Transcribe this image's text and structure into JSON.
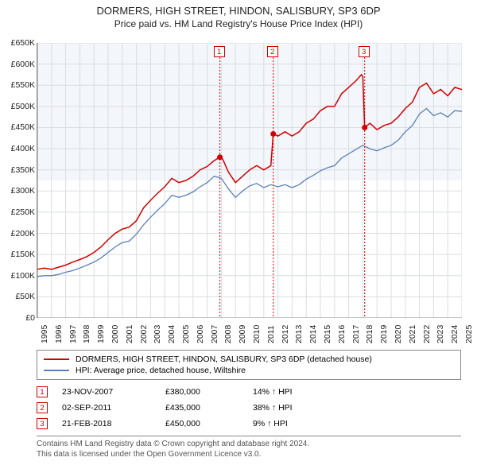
{
  "title_line1": "DORMERS, HIGH STREET, HINDON, SALISBURY, SP3 6DP",
  "title_line2": "Price paid vs. HM Land Registry's House Price Index (HPI)",
  "chart": {
    "type": "line",
    "x_start_year": 1995,
    "x_end_year": 2025,
    "xtick_step": 1,
    "ylim": [
      0,
      650000
    ],
    "ytick_step": 50000,
    "ytick_labels": [
      "£0",
      "£50K",
      "£100K",
      "£150K",
      "£200K",
      "£250K",
      "£300K",
      "£350K",
      "£400K",
      "£450K",
      "£500K",
      "£550K",
      "£600K",
      "£650K"
    ],
    "xtick_labels": [
      "1995",
      "1996",
      "1997",
      "1998",
      "1999",
      "2000",
      "2001",
      "2002",
      "2003",
      "2004",
      "2005",
      "2006",
      "2007",
      "2008",
      "2009",
      "2010",
      "2011",
      "2012",
      "2013",
      "2014",
      "2015",
      "2016",
      "2017",
      "2018",
      "2019",
      "2020",
      "2021",
      "2022",
      "2023",
      "2024",
      "2025"
    ],
    "background_color": "#ffffff",
    "plot_highlight_color": "#e9eef5",
    "grid_color": "#dadde2",
    "axis_color": "#888888",
    "series": [
      {
        "name": "property",
        "label": "DORMERS, HIGH STREET, HINDON, SALISBURY, SP3 6DP (detached house)",
        "color": "#d00000",
        "line_width": 1.5,
        "data": [
          [
            1995.0,
            115000
          ],
          [
            1995.5,
            118000
          ],
          [
            1996.0,
            115000
          ],
          [
            1996.5,
            120000
          ],
          [
            1997.0,
            125000
          ],
          [
            1997.5,
            132000
          ],
          [
            1998.0,
            138000
          ],
          [
            1998.5,
            145000
          ],
          [
            1999.0,
            155000
          ],
          [
            1999.5,
            168000
          ],
          [
            2000.0,
            185000
          ],
          [
            2000.5,
            200000
          ],
          [
            2001.0,
            210000
          ],
          [
            2001.5,
            215000
          ],
          [
            2002.0,
            230000
          ],
          [
            2002.5,
            260000
          ],
          [
            2003.0,
            278000
          ],
          [
            2003.5,
            295000
          ],
          [
            2004.0,
            310000
          ],
          [
            2004.5,
            330000
          ],
          [
            2005.0,
            320000
          ],
          [
            2005.5,
            325000
          ],
          [
            2006.0,
            335000
          ],
          [
            2006.5,
            350000
          ],
          [
            2007.0,
            358000
          ],
          [
            2007.5,
            372000
          ],
          [
            2007.9,
            380000
          ],
          [
            2008.1,
            375000
          ],
          [
            2008.5,
            345000
          ],
          [
            2009.0,
            320000
          ],
          [
            2009.5,
            335000
          ],
          [
            2010.0,
            350000
          ],
          [
            2010.5,
            360000
          ],
          [
            2011.0,
            350000
          ],
          [
            2011.5,
            360000
          ],
          [
            2011.67,
            435000
          ],
          [
            2012.0,
            430000
          ],
          [
            2012.5,
            440000
          ],
          [
            2013.0,
            430000
          ],
          [
            2013.5,
            440000
          ],
          [
            2014.0,
            460000
          ],
          [
            2014.5,
            470000
          ],
          [
            2015.0,
            490000
          ],
          [
            2015.5,
            500000
          ],
          [
            2016.0,
            500000
          ],
          [
            2016.5,
            530000
          ],
          [
            2017.0,
            545000
          ],
          [
            2017.5,
            560000
          ],
          [
            2017.9,
            575000
          ],
          [
            2018.0,
            570000
          ],
          [
            2018.13,
            450000
          ],
          [
            2018.5,
            460000
          ],
          [
            2019.0,
            445000
          ],
          [
            2019.5,
            455000
          ],
          [
            2020.0,
            460000
          ],
          [
            2020.5,
            475000
          ],
          [
            2021.0,
            495000
          ],
          [
            2021.5,
            510000
          ],
          [
            2022.0,
            545000
          ],
          [
            2022.5,
            555000
          ],
          [
            2023.0,
            530000
          ],
          [
            2023.5,
            540000
          ],
          [
            2024.0,
            525000
          ],
          [
            2024.5,
            545000
          ],
          [
            2025.0,
            540000
          ]
        ]
      },
      {
        "name": "hpi",
        "label": "HPI: Average price, detached house, Wiltshire",
        "color": "#5b7fb8",
        "line_width": 1.3,
        "data": [
          [
            1995.0,
            98000
          ],
          [
            1995.5,
            100000
          ],
          [
            1996.0,
            100000
          ],
          [
            1996.5,
            103000
          ],
          [
            1997.0,
            108000
          ],
          [
            1997.5,
            112000
          ],
          [
            1998.0,
            118000
          ],
          [
            1998.5,
            125000
          ],
          [
            1999.0,
            132000
          ],
          [
            1999.5,
            142000
          ],
          [
            2000.0,
            155000
          ],
          [
            2000.5,
            168000
          ],
          [
            2001.0,
            178000
          ],
          [
            2001.5,
            182000
          ],
          [
            2002.0,
            198000
          ],
          [
            2002.5,
            220000
          ],
          [
            2003.0,
            238000
          ],
          [
            2003.5,
            255000
          ],
          [
            2004.0,
            270000
          ],
          [
            2004.5,
            290000
          ],
          [
            2005.0,
            285000
          ],
          [
            2005.5,
            290000
          ],
          [
            2006.0,
            298000
          ],
          [
            2006.5,
            310000
          ],
          [
            2007.0,
            320000
          ],
          [
            2007.5,
            335000
          ],
          [
            2008.0,
            330000
          ],
          [
            2008.5,
            305000
          ],
          [
            2009.0,
            285000
          ],
          [
            2009.5,
            300000
          ],
          [
            2010.0,
            312000
          ],
          [
            2010.5,
            318000
          ],
          [
            2011.0,
            308000
          ],
          [
            2011.5,
            315000
          ],
          [
            2012.0,
            310000
          ],
          [
            2012.5,
            315000
          ],
          [
            2013.0,
            308000
          ],
          [
            2013.5,
            315000
          ],
          [
            2014.0,
            328000
          ],
          [
            2014.5,
            337000
          ],
          [
            2015.0,
            348000
          ],
          [
            2015.5,
            355000
          ],
          [
            2016.0,
            360000
          ],
          [
            2016.5,
            378000
          ],
          [
            2017.0,
            388000
          ],
          [
            2017.5,
            398000
          ],
          [
            2018.0,
            408000
          ],
          [
            2018.5,
            400000
          ],
          [
            2019.0,
            395000
          ],
          [
            2019.5,
            402000
          ],
          [
            2020.0,
            408000
          ],
          [
            2020.5,
            420000
          ],
          [
            2021.0,
            440000
          ],
          [
            2021.5,
            455000
          ],
          [
            2022.0,
            482000
          ],
          [
            2022.5,
            495000
          ],
          [
            2023.0,
            478000
          ],
          [
            2023.5,
            485000
          ],
          [
            2024.0,
            475000
          ],
          [
            2024.5,
            490000
          ],
          [
            2025.0,
            488000
          ]
        ]
      }
    ],
    "annotation_line_color": "#d00000",
    "sale_markers": [
      {
        "n": "1",
        "x": 2007.9,
        "date": "23-NOV-2007",
        "price": "£380,000",
        "hpi_delta": "14% ↑ HPI",
        "price_value": 380000
      },
      {
        "n": "2",
        "x": 2011.67,
        "date": "02-SEP-2011",
        "price": "£435,000",
        "hpi_delta": "38% ↑ HPI",
        "price_value": 435000
      },
      {
        "n": "3",
        "x": 2018.13,
        "date": "21-FEB-2018",
        "price": "£450,000",
        "hpi_delta": "9% ↑ HPI",
        "price_value": 450000
      }
    ]
  },
  "footer_line1": "Contains HM Land Registry data © Crown copyright and database right 2024.",
  "footer_line2": "This data is licensed under the Open Government Licence v3.0."
}
